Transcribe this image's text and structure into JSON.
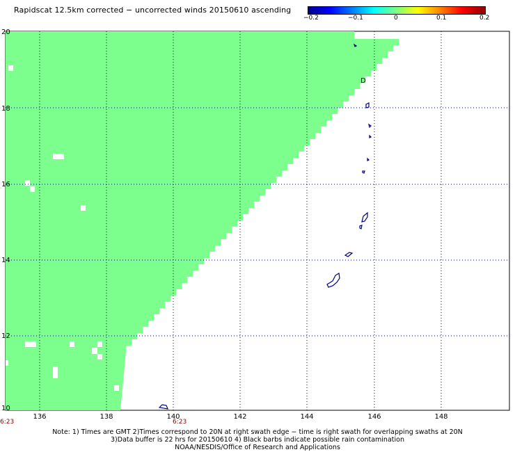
{
  "title": "Rapidscat 12.5km corrected − uncorrected winds 20150610 ascending",
  "colorbar": {
    "ticks": [
      "−0.2",
      "−0.1",
      "0",
      "0.1",
      "0.2"
    ],
    "colors": [
      "#00008f",
      "#0000ff",
      "#00ffff",
      "#7fff7f",
      "#ffff00",
      "#ff0000",
      "#8f0000"
    ]
  },
  "map": {
    "lon_range": [
      135,
      150
    ],
    "lat_range": [
      10,
      20
    ],
    "swath_color": "#7cff8c",
    "coastline_color": "#000080",
    "grid_color": "#00008b",
    "x_ticks": [
      "136",
      "138",
      "140",
      "142",
      "144",
      "146",
      "148"
    ],
    "y_ticks": [
      "20",
      "18",
      "16",
      "14",
      "12",
      "10"
    ],
    "time_labels": [
      "6:23",
      "6:23"
    ],
    "marker_label": "D"
  },
  "notes": [
    "Note: 1) Times are GMT 2)Times correspond to 20N at right swath edge − time is right swath for overlapping swaths at 20N",
    "3)Data buffer is 22 hrs for 20150610 4) Black barbs indicate possible rain contamination",
    "NOAA/NESDIS/Office of Research and Applications"
  ]
}
